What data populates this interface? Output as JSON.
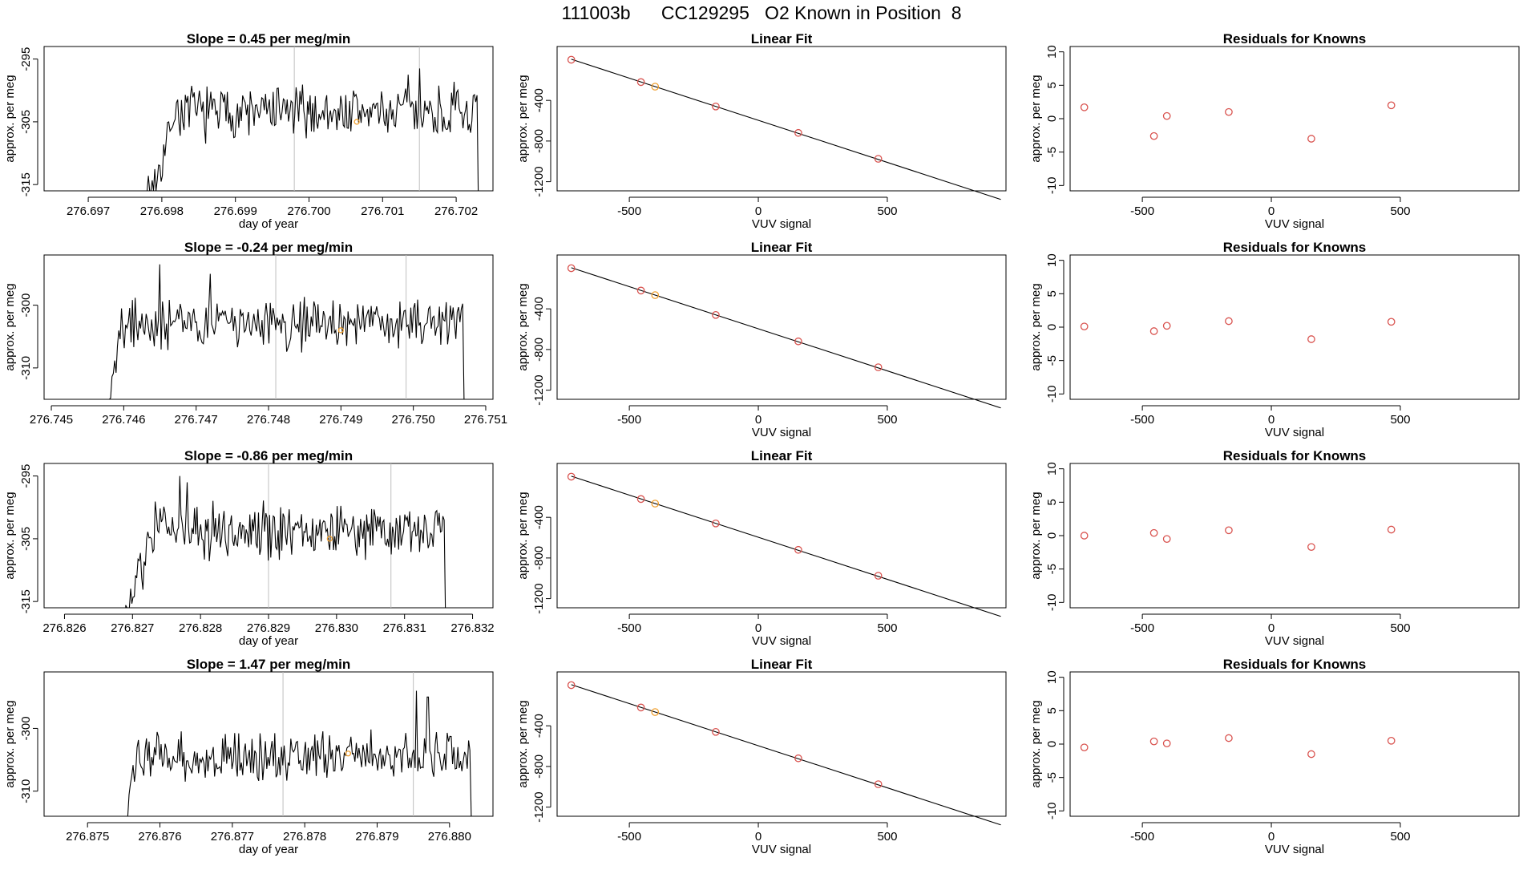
{
  "figure": {
    "title": "111003b      CC129295   O2 Known in Position  8"
  },
  "colors": {
    "axis": "#000000",
    "line": "#000000",
    "marker_known": "#d9534f",
    "marker_highlight": "#f0a030",
    "vertical_marker": "#bfbfbf"
  },
  "chart_data": [
    {
      "row": 1,
      "time_series": {
        "type": "line",
        "title": "Slope =  0.45  per meg/min",
        "xlabel": "day of year",
        "ylabel": "approx. per meg",
        "xlim": [
          276.6964,
          276.7025
        ],
        "ylim": [
          -316,
          -293
        ],
        "xticks": [
          276.697,
          276.698,
          276.699,
          276.7,
          276.701,
          276.702
        ],
        "xtick_labels": [
          "276.697",
          "276.698",
          "276.699",
          "276.700",
          "276.701",
          "276.702"
        ],
        "yticks": [
          -295,
          -305,
          -315
        ],
        "ytick_labels": [
          "-295",
          "-305",
          "-315"
        ],
        "vlines": [
          276.6998,
          276.7015
        ],
        "start": 276.6978,
        "end": 276.7023,
        "baseline": -316,
        "level": -303.5,
        "amp": 3.2,
        "rise_len": 0.00032,
        "seed": 7,
        "spikes": [
          [
            276.7015,
            -296.5
          ],
          [
            276.70135,
            -297.5
          ]
        ],
        "highlight": [
          276.70065,
          -305
        ]
      },
      "linear_fit": {
        "type": "scatter",
        "title": "Linear Fit",
        "xlabel": "VUV signal",
        "ylabel": "approx. per meg",
        "xlim": [
          -780,
          960
        ],
        "ylim": [
          -1290,
          130
        ],
        "xticks": [
          -500,
          0,
          500
        ],
        "xtick_labels": [
          "-500",
          "0",
          "500"
        ],
        "yticks": [
          -400,
          -800,
          -1200
        ],
        "ytick_labels": [
          "-400",
          "-800",
          "-1200"
        ],
        "points": [
          [
            -725,
            0
          ],
          [
            -455,
            -220
          ],
          [
            -400,
            -265
          ],
          [
            -165,
            -460
          ],
          [
            155,
            -720
          ],
          [
            465,
            -975
          ]
        ],
        "highlight_index": 2,
        "fit_line": [
          [
            -725,
            5
          ],
          [
            940,
            -1375
          ]
        ]
      },
      "residuals": {
        "type": "scatter",
        "title": "Residuals for Knowns",
        "xlabel": "VUV signal",
        "ylabel": "approx. per meg",
        "xlim": [
          -780,
          960
        ],
        "ylim": [
          -10.8,
          10.8
        ],
        "xticks": [
          -500,
          0,
          500
        ],
        "xtick_labels": [
          "-500",
          "0",
          "500"
        ],
        "yticks": [
          10,
          5,
          0,
          -5,
          -10
        ],
        "ytick_labels": [
          "10",
          "5",
          "0",
          "-5",
          "-10"
        ],
        "points": [
          [
            -725,
            1.7
          ],
          [
            -455,
            -2.6
          ],
          [
            -405,
            0.4
          ],
          [
            -165,
            1.0
          ],
          [
            155,
            -3.0
          ],
          [
            465,
            2.0
          ]
        ]
      }
    },
    {
      "row": 2,
      "time_series": {
        "type": "line",
        "title": "Slope =  -0.24  per meg/min",
        "xlabel": "",
        "ylabel": "approx. per meg",
        "xlim": [
          276.7449,
          276.7511
        ],
        "ylim": [
          -315,
          -292
        ],
        "xticks": [
          276.745,
          276.746,
          276.747,
          276.748,
          276.749,
          276.75,
          276.751
        ],
        "xtick_labels": [
          "276.745",
          "276.746",
          "276.747",
          "276.748",
          "276.749",
          "276.750",
          "276.751"
        ],
        "yticks": [
          -300,
          -310
        ],
        "ytick_labels": [
          "-300",
          "-310"
        ],
        "vlines": [
          276.7481,
          276.7499
        ],
        "start": 276.7458,
        "end": 276.7507,
        "baseline": -315,
        "level": -303,
        "amp": 3.0,
        "rise_len": 0.00012,
        "seed": 19,
        "spikes": [
          [
            276.7465,
            -293.5
          ],
          [
            276.7472,
            -295
          ]
        ],
        "highlight": [
          276.749,
          -304
        ]
      },
      "linear_fit": {
        "type": "scatter",
        "title": "Linear Fit",
        "xlabel": "VUV signal",
        "ylabel": "approx. per meg",
        "xlim": [
          -780,
          960
        ],
        "ylim": [
          -1290,
          130
        ],
        "xticks": [
          -500,
          0,
          500
        ],
        "xtick_labels": [
          "-500",
          "0",
          "500"
        ],
        "yticks": [
          -400,
          -800,
          -1200
        ],
        "ytick_labels": [
          "-400",
          "-800",
          "-1200"
        ],
        "points": [
          [
            -725,
            0
          ],
          [
            -455,
            -220
          ],
          [
            -400,
            -265
          ],
          [
            -165,
            -460
          ],
          [
            155,
            -720
          ],
          [
            465,
            -975
          ]
        ],
        "highlight_index": 2,
        "fit_line": [
          [
            -725,
            5
          ],
          [
            940,
            -1375
          ]
        ]
      },
      "residuals": {
        "type": "scatter",
        "title": "Residuals for Knowns",
        "xlabel": "VUV signal",
        "ylabel": "approx. per meg",
        "xlim": [
          -780,
          960
        ],
        "ylim": [
          -10.8,
          10.8
        ],
        "xticks": [
          -500,
          0,
          500
        ],
        "xtick_labels": [
          "-500",
          "0",
          "500"
        ],
        "yticks": [
          10,
          5,
          0,
          -5,
          -10
        ],
        "ytick_labels": [
          "10",
          "5",
          "0",
          "-5",
          "-10"
        ],
        "points": [
          [
            -725,
            0.1
          ],
          [
            -455,
            -0.6
          ],
          [
            -405,
            0.2
          ],
          [
            -165,
            0.9
          ],
          [
            155,
            -1.8
          ],
          [
            465,
            0.8
          ]
        ]
      }
    },
    {
      "row": 3,
      "time_series": {
        "type": "line",
        "title": "Slope =  -0.86  per meg/min",
        "xlabel": "day of year",
        "ylabel": "approx. per meg",
        "xlim": [
          276.8257,
          276.8323
        ],
        "ylim": [
          -316,
          -293
        ],
        "xticks": [
          276.826,
          276.827,
          276.828,
          276.829,
          276.83,
          276.831,
          276.832
        ],
        "xtick_labels": [
          "276.826",
          "276.827",
          "276.828",
          "276.829",
          "276.830",
          "276.831",
          "276.832"
        ],
        "yticks": [
          -295,
          -305,
          -315
        ],
        "ytick_labels": [
          "-295",
          "-305",
          "-315"
        ],
        "vlines": [
          276.829,
          276.8308
        ],
        "start": 276.8269,
        "end": 276.8316,
        "baseline": -316,
        "level": -303.5,
        "amp": 3.3,
        "rise_len": 0.00035,
        "seed": 31,
        "spikes": [
          [
            276.8277,
            -295
          ],
          [
            276.8278,
            -296
          ]
        ],
        "highlight": [
          276.8299,
          -305
        ]
      },
      "linear_fit": {
        "type": "scatter",
        "title": "Linear Fit",
        "xlabel": "VUV signal",
        "ylabel": "approx. per meg",
        "xlim": [
          -780,
          960
        ],
        "ylim": [
          -1290,
          130
        ],
        "xticks": [
          -500,
          0,
          500
        ],
        "xtick_labels": [
          "-500",
          "0",
          "500"
        ],
        "yticks": [
          -400,
          -800,
          -1200
        ],
        "ytick_labels": [
          "-400",
          "-800",
          "-1200"
        ],
        "points": [
          [
            -725,
            0
          ],
          [
            -455,
            -220
          ],
          [
            -400,
            -265
          ],
          [
            -165,
            -460
          ],
          [
            155,
            -720
          ],
          [
            465,
            -975
          ]
        ],
        "highlight_index": 2,
        "fit_line": [
          [
            -725,
            5
          ],
          [
            940,
            -1375
          ]
        ]
      },
      "residuals": {
        "type": "scatter",
        "title": "Residuals for Knowns",
        "xlabel": "VUV signal",
        "ylabel": "approx. per meg",
        "xlim": [
          -780,
          960
        ],
        "ylim": [
          -10.8,
          10.8
        ],
        "xticks": [
          -500,
          0,
          500
        ],
        "xtick_labels": [
          "-500",
          "0",
          "500"
        ],
        "yticks": [
          10,
          5,
          0,
          -5,
          -10
        ],
        "ytick_labels": [
          "10",
          "5",
          "0",
          "-5",
          "-10"
        ],
        "points": [
          [
            -725,
            0.0
          ],
          [
            -455,
            0.4
          ],
          [
            -405,
            -0.5
          ],
          [
            -165,
            0.8
          ],
          [
            155,
            -1.7
          ],
          [
            465,
            0.9
          ]
        ]
      }
    },
    {
      "row": 4,
      "time_series": {
        "type": "line",
        "title": "Slope =  1.47  per meg/min",
        "xlabel": "day of year",
        "ylabel": "approx. per meg",
        "xlim": [
          276.8744,
          276.8806
        ],
        "ylim": [
          -314,
          -291
        ],
        "xticks": [
          276.875,
          276.876,
          276.877,
          276.878,
          276.879,
          276.88
        ],
        "xtick_labels": [
          "276.875",
          "276.876",
          "276.877",
          "276.878",
          "276.879",
          "276.880"
        ],
        "yticks": [
          -300,
          -310
        ],
        "ytick_labels": [
          "-300",
          "-310"
        ],
        "vlines": [
          276.8777,
          276.8795
        ],
        "start": 276.8755,
        "end": 276.8803,
        "baseline": -314,
        "level": -304.5,
        "amp": 2.8,
        "rise_len": 0.00015,
        "seed": 53,
        "spikes": [
          [
            276.87955,
            -294
          ],
          [
            276.8797,
            -295
          ]
        ],
        "highlight": [
          276.8786,
          -304
        ]
      },
      "linear_fit": {
        "type": "scatter",
        "title": "Linear Fit",
        "xlabel": "VUV signal",
        "ylabel": "approx. per meg",
        "xlim": [
          -780,
          960
        ],
        "ylim": [
          -1290,
          130
        ],
        "xticks": [
          -500,
          0,
          500
        ],
        "xtick_labels": [
          "-500",
          "0",
          "500"
        ],
        "yticks": [
          -400,
          -800,
          -1200
        ],
        "ytick_labels": [
          "-400",
          "-800",
          "-1200"
        ],
        "points": [
          [
            -725,
            0
          ],
          [
            -455,
            -220
          ],
          [
            -400,
            -265
          ],
          [
            -165,
            -460
          ],
          [
            155,
            -720
          ],
          [
            465,
            -975
          ]
        ],
        "highlight_index": 2,
        "fit_line": [
          [
            -725,
            5
          ],
          [
            940,
            -1375
          ]
        ]
      },
      "residuals": {
        "type": "scatter",
        "title": "Residuals for Knowns",
        "xlabel": "VUV signal",
        "ylabel": "approx. per meg",
        "xlim": [
          -780,
          960
        ],
        "ylim": [
          -10.8,
          10.8
        ],
        "xticks": [
          -500,
          0,
          500
        ],
        "xtick_labels": [
          "-500",
          "0",
          "500"
        ],
        "yticks": [
          10,
          5,
          0,
          -5,
          -10
        ],
        "ytick_labels": [
          "10",
          "5",
          "0",
          "-5",
          "-10"
        ],
        "points": [
          [
            -725,
            -0.5
          ],
          [
            -455,
            0.4
          ],
          [
            -405,
            0.1
          ],
          [
            -165,
            0.9
          ],
          [
            155,
            -1.5
          ],
          [
            465,
            0.5
          ]
        ]
      }
    }
  ]
}
